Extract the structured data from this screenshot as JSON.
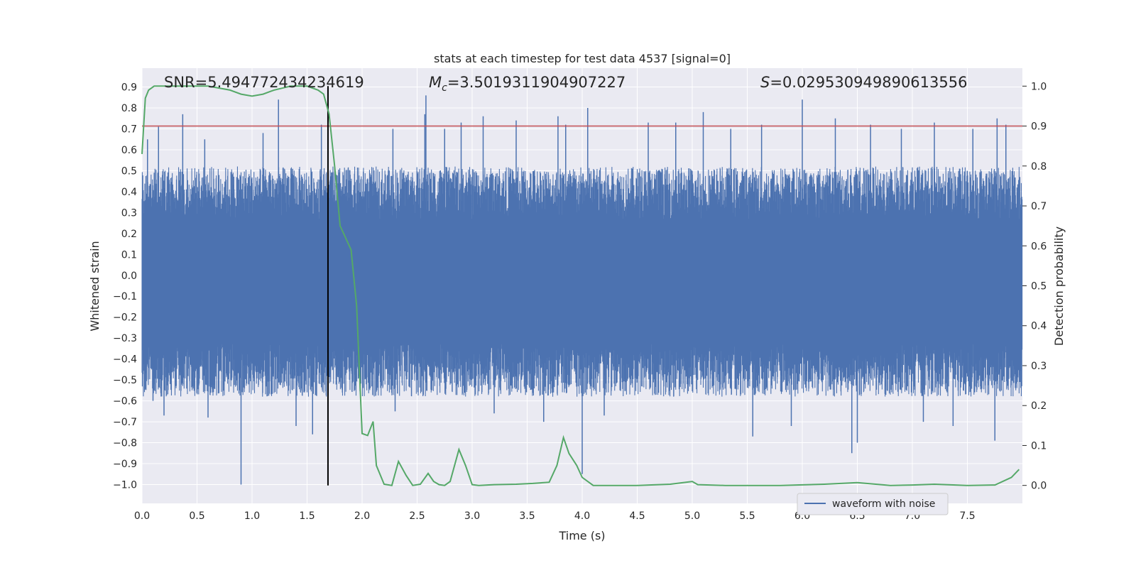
{
  "chart_data": {
    "type": "line",
    "title": "stats at each timestep for test data 4537 [signal=0]",
    "xlabel": "Time (s)",
    "ylabel": "Whitened strain",
    "y2label": "Detection probability",
    "xlim": [
      0.0,
      8.0
    ],
    "ylim": [
      -1.09,
      0.99
    ],
    "y2lim": [
      -0.045,
      1.045
    ],
    "x_ticks": [
      0.0,
      0.5,
      1.0,
      1.5,
      2.0,
      2.5,
      3.0,
      3.5,
      4.0,
      4.5,
      5.0,
      5.5,
      6.0,
      6.5,
      7.0,
      7.5
    ],
    "x_tick_labels": [
      "0.0",
      "0.5",
      "1.0",
      "1.5",
      "2.0",
      "2.5",
      "3.0",
      "3.5",
      "4.0",
      "4.5",
      "5.0",
      "5.5",
      "6.0",
      "6.5",
      "7.0",
      "7.5"
    ],
    "y_ticks": [
      0.9,
      0.8,
      0.7,
      0.6,
      0.5,
      0.4,
      0.3,
      0.2,
      0.1,
      0.0,
      -0.1,
      -0.2,
      -0.3,
      -0.4,
      -0.5,
      -0.6,
      -0.7,
      -0.8,
      -0.9,
      -1.0
    ],
    "y_tick_labels": [
      "0.9",
      "0.8",
      "0.7",
      "0.6",
      "0.5",
      "0.4",
      "0.3",
      "0.2",
      "0.1",
      "0.0",
      "−0.1",
      "−0.2",
      "−0.3",
      "−0.4",
      "−0.5",
      "−0.6",
      "−0.7",
      "−0.8",
      "−0.9",
      "−1.0"
    ],
    "y2_ticks": [
      1.0,
      0.9,
      0.8,
      0.7,
      0.6,
      0.5,
      0.4,
      0.3,
      0.2,
      0.1,
      0.0
    ],
    "y2_tick_labels": [
      "1.0",
      "0.9",
      "0.8",
      "0.7",
      "0.6",
      "0.5",
      "0.4",
      "0.3",
      "0.2",
      "0.1",
      "0.0"
    ],
    "grid": true,
    "legend": {
      "placement": "lower-right",
      "entries": [
        "waveform with noise"
      ]
    },
    "annotations": {
      "snr": "SNR=5.494772434234619",
      "mc_symbol": "M",
      "mc_sub": "c",
      "mc_value": "=3.5019311904907227",
      "s_symbol": "S",
      "s_value": "=0.029530949890613556"
    },
    "threshold_probability": 0.9,
    "marker_time": 1.69,
    "colors": {
      "waveform": "#4c72b0",
      "probability": "#55a868",
      "threshold": "#c44e52",
      "marker": "#000000",
      "background": "#eaeaf2",
      "grid": "#ffffff"
    },
    "series": [
      {
        "name": "waveform with noise",
        "axis": "left",
        "style": "dense noise between about -0.5 and 0.5, occasional spikes",
        "spikes": [
          [
            0.05,
            0.65
          ],
          [
            0.1,
            -0.6
          ],
          [
            0.15,
            0.71
          ],
          [
            0.2,
            -0.67
          ],
          [
            0.37,
            0.77
          ],
          [
            0.57,
            0.65
          ],
          [
            0.6,
            -0.68
          ],
          [
            0.9,
            -1.0
          ],
          [
            1.1,
            0.68
          ],
          [
            1.24,
            0.84
          ],
          [
            1.4,
            -0.72
          ],
          [
            1.55,
            -0.76
          ],
          [
            1.63,
            0.72
          ],
          [
            2.28,
            0.7
          ],
          [
            2.3,
            -0.65
          ],
          [
            2.57,
            0.77
          ],
          [
            2.58,
            0.86
          ],
          [
            2.75,
            0.7
          ],
          [
            2.9,
            0.73
          ],
          [
            3.1,
            0.76
          ],
          [
            3.2,
            -0.66
          ],
          [
            3.4,
            0.74
          ],
          [
            3.65,
            -0.7
          ],
          [
            3.78,
            0.76
          ],
          [
            3.85,
            0.72
          ],
          [
            4.0,
            -0.95
          ],
          [
            4.05,
            0.8
          ],
          [
            4.2,
            -0.67
          ],
          [
            4.6,
            0.73
          ],
          [
            4.85,
            0.73
          ],
          [
            5.1,
            0.78
          ],
          [
            5.35,
            0.7
          ],
          [
            5.55,
            -0.77
          ],
          [
            5.63,
            0.72
          ],
          [
            5.9,
            -0.72
          ],
          [
            6.0,
            0.84
          ],
          [
            6.3,
            0.75
          ],
          [
            6.45,
            -0.85
          ],
          [
            6.5,
            -0.8
          ],
          [
            6.62,
            0.72
          ],
          [
            6.9,
            0.7
          ],
          [
            7.1,
            -0.7
          ],
          [
            7.2,
            0.73
          ],
          [
            7.37,
            -0.72
          ],
          [
            7.55,
            0.7
          ],
          [
            7.75,
            -0.79
          ],
          [
            7.77,
            0.75
          ],
          [
            7.85,
            0.72
          ]
        ]
      },
      {
        "name": "",
        "axis": "right",
        "x": [
          0.0,
          0.03,
          0.06,
          0.11,
          0.3,
          0.6,
          0.8,
          0.9,
          1.0,
          1.1,
          1.2,
          1.35,
          1.5,
          1.6,
          1.65,
          1.7,
          1.75,
          1.8,
          1.85,
          1.9,
          1.95,
          2.0,
          2.05,
          2.1,
          2.13,
          2.2,
          2.27,
          2.33,
          2.4,
          2.46,
          2.53,
          2.6,
          2.65,
          2.7,
          2.75,
          2.8,
          2.88,
          2.94,
          3.0,
          3.06,
          3.2,
          3.4,
          3.55,
          3.7,
          3.77,
          3.83,
          3.88,
          3.95,
          4.0,
          4.1,
          4.15,
          4.2,
          4.5,
          4.8,
          5.0,
          5.05,
          5.3,
          5.8,
          6.2,
          6.5,
          6.8,
          7.0,
          7.2,
          7.5,
          7.75,
          7.9,
          7.97
        ],
        "values": [
          0.83,
          0.97,
          0.99,
          1.0,
          1.0,
          1.0,
          0.99,
          0.98,
          0.975,
          0.98,
          0.99,
          1.0,
          1.0,
          0.99,
          0.98,
          0.93,
          0.8,
          0.65,
          0.62,
          0.59,
          0.45,
          0.13,
          0.125,
          0.16,
          0.05,
          0.003,
          0.0,
          0.06,
          0.025,
          0.0,
          0.003,
          0.03,
          0.01,
          0.002,
          0.0,
          0.01,
          0.09,
          0.05,
          0.002,
          0.0,
          0.002,
          0.003,
          0.005,
          0.008,
          0.05,
          0.12,
          0.08,
          0.05,
          0.02,
          0.0,
          0.0,
          0.0,
          0.0,
          0.003,
          0.01,
          0.002,
          0.0,
          0.0,
          0.003,
          0.007,
          0.0,
          0.001,
          0.003,
          0.0,
          0.001,
          0.02,
          0.04
        ]
      }
    ]
  }
}
